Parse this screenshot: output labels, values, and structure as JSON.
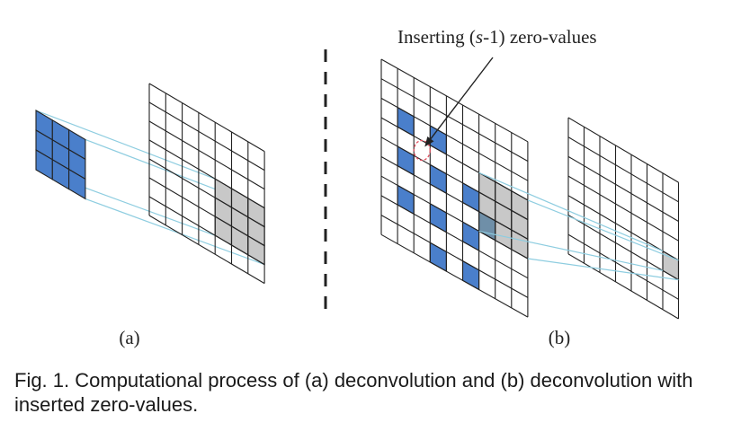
{
  "annotation": {
    "prefix": "Inserting (",
    "italic": "s",
    "suffix": "-1) zero-values"
  },
  "labels": {
    "a": "(a)",
    "b": "(b)"
  },
  "caption": "Fig. 1. Computational process of (a) deconvolution and (b) deconvolution with inserted zero-values.",
  "colors": {
    "kernel": "#4a7fcb",
    "receptive": "#c8c8c8",
    "overlap": "#6f8fa8",
    "projection": "#8ecde0",
    "grid": "#222222",
    "zero_marker": "#e05060"
  },
  "panel_a": {
    "kernel_size": 3,
    "input_size": 7,
    "highlight_cols": [
      4,
      5,
      6
    ],
    "highlight_rows": [
      3,
      4,
      5
    ]
  },
  "panel_b": {
    "input_size": 9,
    "output_size": 7,
    "blue_cells": [
      [
        1,
        2
      ],
      [
        3,
        2
      ],
      [
        1,
        4
      ],
      [
        3,
        4
      ],
      [
        5,
        4
      ],
      [
        1,
        6
      ],
      [
        3,
        6
      ],
      [
        5,
        6
      ],
      [
        3,
        8
      ],
      [
        5,
        8
      ]
    ],
    "gray_cols": [
      6,
      7,
      8
    ],
    "gray_rows": [
      3,
      4,
      5
    ],
    "overlap_cells": [
      [
        6,
        5
      ]
    ],
    "zero_marker_cell": [
      2,
      3
    ],
    "output_highlight": [
      6,
      4
    ]
  }
}
